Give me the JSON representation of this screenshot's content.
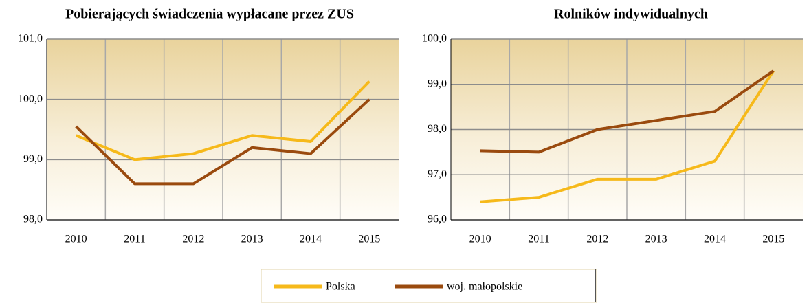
{
  "chart_data": [
    {
      "type": "line",
      "title": "Pobierających świadczenia wypłacane przez ZUS",
      "categories": [
        "2010",
        "2011",
        "2012",
        "2013",
        "2014",
        "2015"
      ],
      "series": [
        {
          "name": "Polska",
          "color": "#f6b91a",
          "values": [
            99.4,
            99.0,
            99.1,
            99.4,
            99.3,
            100.3
          ]
        },
        {
          "name": "woj. małopolskie",
          "color": "#9a4a0e",
          "values": [
            99.55,
            98.6,
            98.6,
            99.2,
            99.1,
            100.0
          ]
        }
      ],
      "ylim": [
        98,
        101
      ],
      "yticks": [
        {
          "value": 98,
          "label": "98,0"
        },
        {
          "value": 99,
          "label": "99,0"
        },
        {
          "value": 100,
          "label": "100,0"
        },
        {
          "value": 101,
          "label": "101,0"
        }
      ],
      "grid": true
    },
    {
      "type": "line",
      "title": "Rolników indywidualnych",
      "categories": [
        "2010",
        "2011",
        "2012",
        "2013",
        "2014",
        "2015"
      ],
      "series": [
        {
          "name": "Polska",
          "color": "#f6b91a",
          "values": [
            96.4,
            96.5,
            96.9,
            96.9,
            97.3,
            99.3
          ]
        },
        {
          "name": "woj. małopolskie",
          "color": "#9a4a0e",
          "values": [
            97.53,
            97.5,
            98.0,
            98.2,
            98.4,
            99.3
          ]
        }
      ],
      "ylim": [
        96,
        100
      ],
      "yticks": [
        {
          "value": 96,
          "label": "96,0"
        },
        {
          "value": 97,
          "label": "97,0"
        },
        {
          "value": 98,
          "label": "98,0"
        },
        {
          "value": 99,
          "label": "99,0"
        },
        {
          "value": 100,
          "label": "100,0"
        }
      ],
      "grid": true
    }
  ]
}
